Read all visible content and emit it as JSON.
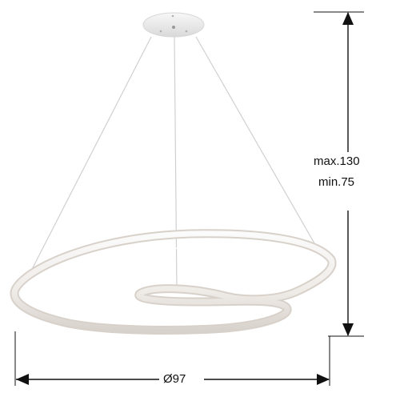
{
  "dimensions": {
    "height_max": "max.130",
    "height_min": "min.75",
    "diameter": "Ø97"
  },
  "colors": {
    "line": "#111111",
    "lamp_ring": "#f2eeea",
    "lamp_shadow": "#d7d1cb",
    "canopy": "#efefef",
    "cable": "#d5d5d5"
  }
}
